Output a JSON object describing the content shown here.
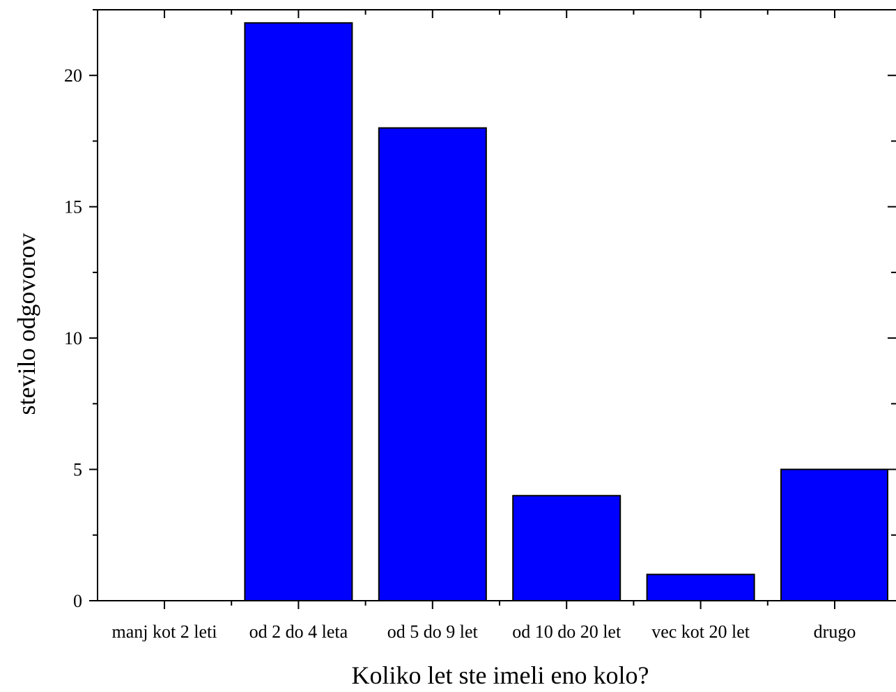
{
  "chart_data": {
    "type": "bar",
    "title": "",
    "xlabel": "Koliko let ste imeli eno kolo?",
    "ylabel": "stevilo odgovorov",
    "categories": [
      "manj kot 2 leti",
      "od 2 do 4 leta",
      "od 5 do 9 let",
      "od 10 do 20 let",
      "vec kot 20 let",
      "drugo"
    ],
    "values": [
      0,
      22,
      18,
      4,
      1,
      5
    ],
    "ylim": [
      0,
      22.5
    ],
    "yticks": [
      0,
      5,
      10,
      15,
      20
    ],
    "grid": false,
    "legend": "none",
    "bar_color": "#0000ff",
    "edge_color": "#000000"
  }
}
